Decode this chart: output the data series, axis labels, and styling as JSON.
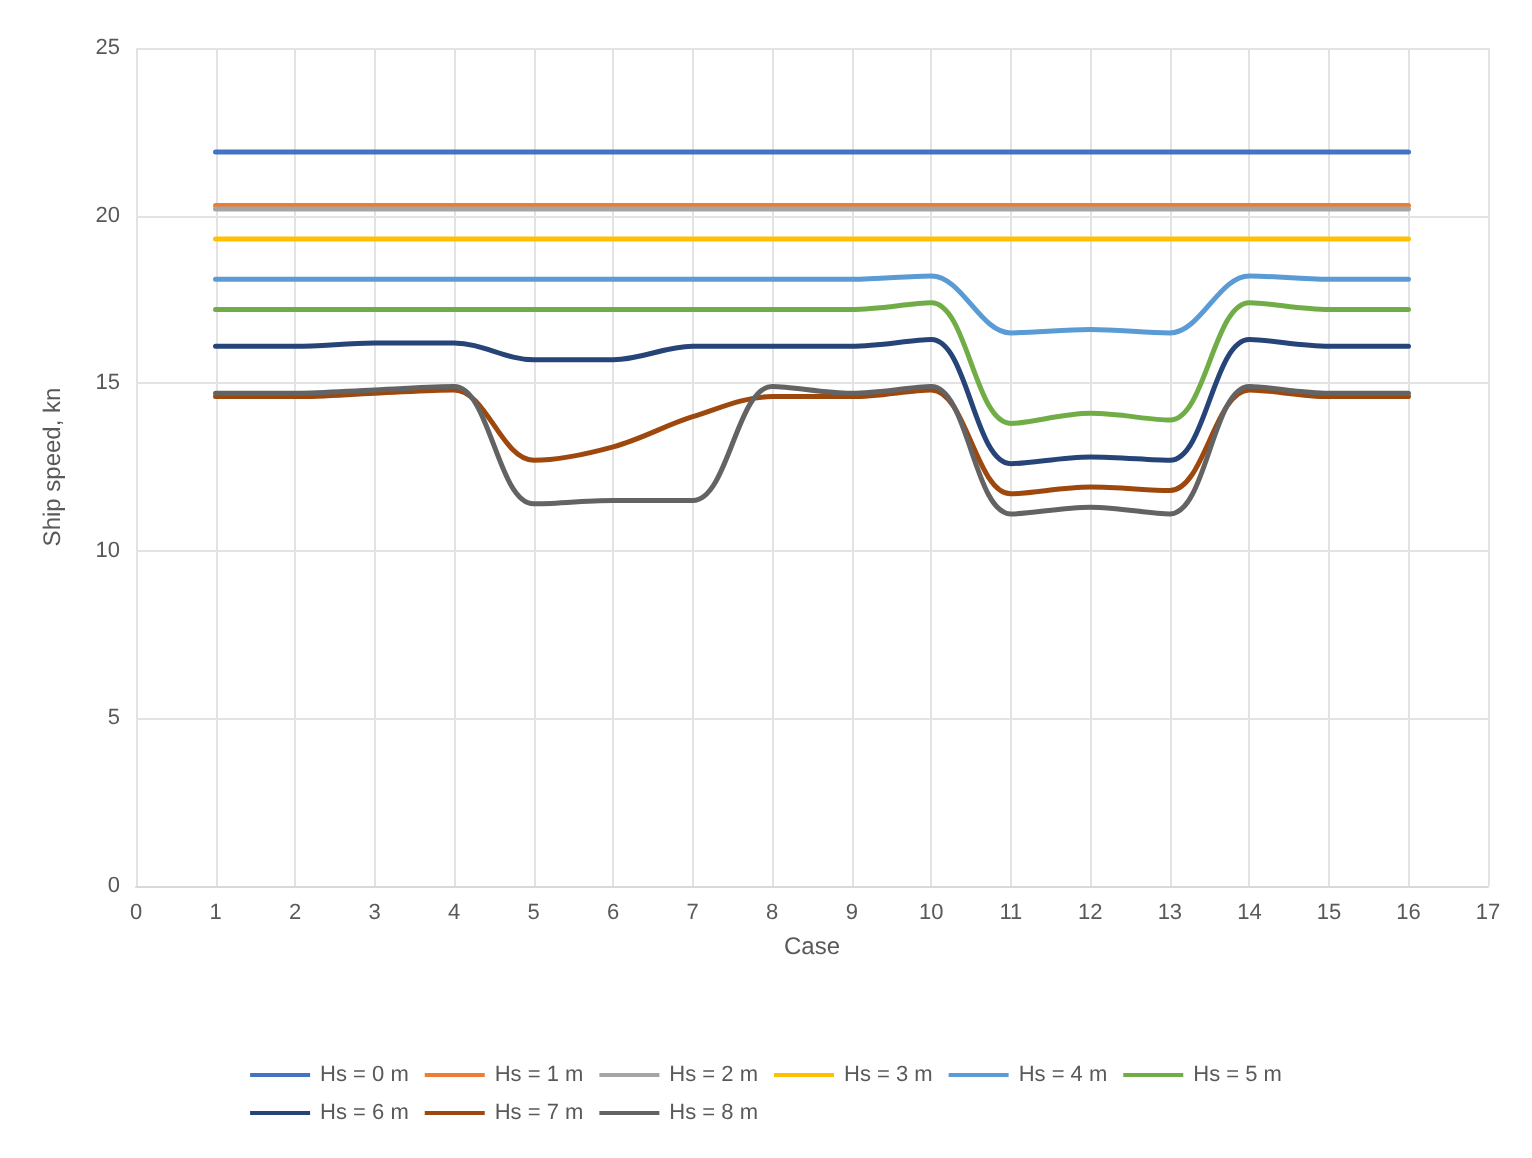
{
  "chart_data": {
    "type": "line",
    "xlabel": "Case",
    "ylabel": "Ship speed, kn",
    "x": [
      1,
      2,
      3,
      4,
      5,
      6,
      7,
      8,
      9,
      10,
      11,
      12,
      13,
      14,
      15,
      16
    ],
    "xlim": [
      0,
      17
    ],
    "xticks": [
      0,
      1,
      2,
      3,
      4,
      5,
      6,
      7,
      8,
      9,
      10,
      11,
      12,
      13,
      14,
      15,
      16,
      17
    ],
    "ylim": [
      0,
      25
    ],
    "yticks": [
      0,
      5,
      10,
      15,
      20,
      25
    ],
    "grid": true,
    "legend": "bottom",
    "marker": "none",
    "line_style": "solid",
    "series": [
      {
        "name": "Hs = 0 m",
        "color": "#4472c4",
        "values": [
          21.9,
          21.9,
          21.9,
          21.9,
          21.9,
          21.9,
          21.9,
          21.9,
          21.9,
          21.9,
          21.9,
          21.9,
          21.9,
          21.9,
          21.9,
          21.9
        ]
      },
      {
        "name": "Hs = 1 m",
        "color": "#ed7d31",
        "values": [
          20.3,
          20.3,
          20.3,
          20.3,
          20.3,
          20.3,
          20.3,
          20.3,
          20.3,
          20.3,
          20.3,
          20.3,
          20.3,
          20.3,
          20.3,
          20.3
        ]
      },
      {
        "name": "Hs = 2 m",
        "color": "#a5a5a5",
        "values": [
          20.2,
          20.2,
          20.2,
          20.2,
          20.2,
          20.2,
          20.2,
          20.2,
          20.2,
          20.2,
          20.2,
          20.2,
          20.2,
          20.2,
          20.2,
          20.2
        ]
      },
      {
        "name": "Hs = 3 m",
        "color": "#ffc000",
        "values": [
          19.3,
          19.3,
          19.3,
          19.3,
          19.3,
          19.3,
          19.3,
          19.3,
          19.3,
          19.3,
          19.3,
          19.3,
          19.3,
          19.3,
          19.3,
          19.3
        ]
      },
      {
        "name": "Hs = 4 m",
        "color": "#5b9bd5",
        "values": [
          18.1,
          18.1,
          18.1,
          18.1,
          18.1,
          18.1,
          18.1,
          18.1,
          18.1,
          18.2,
          16.5,
          16.6,
          16.5,
          18.2,
          18.1,
          18.1
        ]
      },
      {
        "name": "Hs = 5 m",
        "color": "#70ad47",
        "values": [
          17.2,
          17.2,
          17.2,
          17.2,
          17.2,
          17.2,
          17.2,
          17.2,
          17.2,
          17.4,
          13.8,
          14.1,
          13.9,
          17.4,
          17.2,
          17.2
        ]
      },
      {
        "name": "Hs = 6 m",
        "color": "#264478",
        "values": [
          16.1,
          16.1,
          16.2,
          16.2,
          15.7,
          15.7,
          16.1,
          16.1,
          16.1,
          16.3,
          12.6,
          12.8,
          12.7,
          16.3,
          16.1,
          16.1
        ]
      },
      {
        "name": "Hs = 7 m",
        "color": "#9e480e",
        "values": [
          14.6,
          14.6,
          14.7,
          14.8,
          12.7,
          13.1,
          14.0,
          14.6,
          14.6,
          14.8,
          11.7,
          11.9,
          11.8,
          14.8,
          14.6,
          14.6
        ]
      },
      {
        "name": "Hs = 8 m",
        "color": "#636363",
        "values": [
          14.7,
          14.7,
          14.8,
          14.9,
          11.4,
          11.5,
          11.5,
          14.9,
          14.7,
          14.9,
          11.1,
          11.3,
          11.1,
          14.9,
          14.7,
          14.7
        ]
      }
    ]
  }
}
